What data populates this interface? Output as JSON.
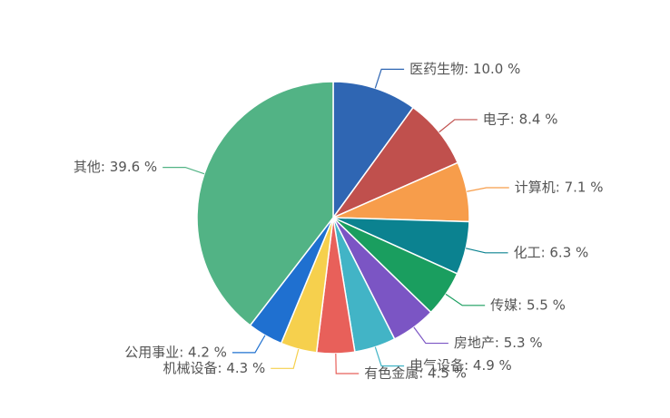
{
  "chart_data": {
    "type": "pie",
    "values": [
      10.0,
      8.4,
      7.1,
      6.3,
      5.5,
      5.3,
      4.9,
      4.5,
      4.3,
      4.2,
      39.6
    ],
    "value_labels": [
      "医药生物: 10.0 %",
      "电子: 8.4 %",
      "计算机: 7.1 %",
      "化工: 6.3 %",
      "传媒: 5.5 %",
      "房地产: 5.3 %",
      "电气设备: 4.9 %",
      "有色金属: 4.5 %",
      "机械设备: 4.3 %",
      "公用事业: 4.2 %",
      "其他: 39.6 %"
    ],
    "colors": [
      "#2f66b3",
      "#c0504d",
      "#f79d4b",
      "#0b8290",
      "#1a9e5f",
      "#7b55c4",
      "#42b4c6",
      "#e8605a",
      "#f6d04d",
      "#1f70d0",
      "#52b385"
    ]
  }
}
